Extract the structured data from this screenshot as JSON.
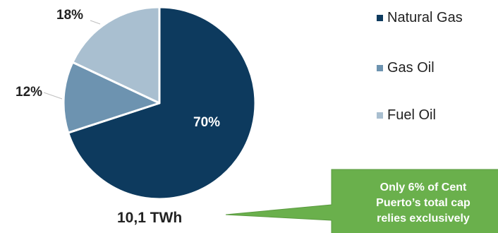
{
  "chart_data": {
    "type": "pie",
    "categories": [
      "Natural Gas",
      "Gas Oil",
      "Fuel Oil"
    ],
    "values": [
      70,
      12,
      18
    ],
    "labels": [
      "70%",
      "12%",
      "18%"
    ],
    "colors": [
      "#0d3a5e",
      "#6d93b0",
      "#a9bfd0"
    ],
    "total_label": "10,1 TWh",
    "legend_position": "right"
  },
  "callout": {
    "text": "Only 6% of Cent\nPuerto’s total cap\nrelies exclusively",
    "color": "#6ab04c"
  }
}
